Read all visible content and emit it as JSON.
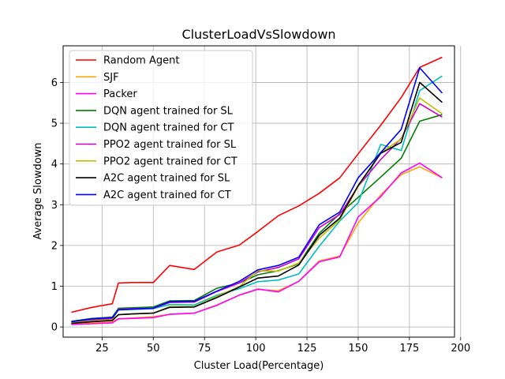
{
  "chart_data": {
    "type": "line",
    "title": "ClusterLoadVsSlowdown",
    "xlabel": "Cluster Load(Percentage)",
    "ylabel": "Average Slowdown",
    "xlim": [
      6,
      197
    ],
    "ylim": [
      -0.25,
      6.9
    ],
    "xticks": [
      25,
      50,
      75,
      100,
      125,
      150,
      175,
      200
    ],
    "yticks": [
      0,
      1,
      2,
      3,
      4,
      5,
      6
    ],
    "grid": true,
    "legend_position": "upper-left",
    "x": [
      10,
      20,
      30,
      33,
      40,
      50,
      58,
      70,
      81,
      92,
      101,
      111,
      121,
      131,
      141,
      150,
      161,
      171,
      180,
      191
    ],
    "series": [
      {
        "name": "Random Agent",
        "color": "#ff0000",
        "values": [
          0.36,
          0.48,
          0.57,
          1.08,
          1.09,
          1.09,
          1.51,
          1.41,
          1.84,
          2.01,
          2.34,
          2.73,
          2.97,
          3.28,
          3.66,
          4.25,
          4.95,
          5.63,
          6.37,
          6.62
        ]
      },
      {
        "name": "SJF",
        "color": "#ffa500",
        "values": [
          0.07,
          0.1,
          0.13,
          0.2,
          0.22,
          0.25,
          0.31,
          0.34,
          0.54,
          0.78,
          0.92,
          0.89,
          1.12,
          1.62,
          1.74,
          2.55,
          3.24,
          3.74,
          3.93,
          3.66
        ]
      },
      {
        "name": "Packer",
        "color": "#ff00ff",
        "values": [
          0.06,
          0.08,
          0.1,
          0.2,
          0.21,
          0.23,
          0.31,
          0.34,
          0.53,
          0.78,
          0.93,
          0.86,
          1.12,
          1.6,
          1.72,
          2.7,
          3.2,
          3.78,
          4.02,
          3.66
        ]
      },
      {
        "name": "DQN agent trained for SL",
        "color": "#008000",
        "values": [
          0.14,
          0.21,
          0.24,
          0.46,
          0.47,
          0.49,
          0.64,
          0.65,
          0.95,
          1.08,
          1.28,
          1.38,
          1.55,
          2.3,
          2.78,
          3.18,
          3.68,
          4.14,
          5.05,
          5.21
        ]
      },
      {
        "name": "DQN agent trained for CT",
        "color": "#00bfbf",
        "values": [
          0.11,
          0.16,
          0.19,
          0.42,
          0.43,
          0.45,
          0.55,
          0.54,
          0.78,
          0.94,
          1.11,
          1.15,
          1.3,
          1.98,
          2.6,
          3.05,
          4.48,
          4.33,
          5.8,
          6.16
        ]
      },
      {
        "name": "PPO2 agent trained for SL",
        "color": "#cc00cc",
        "values": [
          0.12,
          0.18,
          0.21,
          0.43,
          0.45,
          0.46,
          0.6,
          0.61,
          0.87,
          1.08,
          1.35,
          1.46,
          1.67,
          2.44,
          2.76,
          3.45,
          4.11,
          4.63,
          5.48,
          5.15
        ]
      },
      {
        "name": "PPO2 agent trained for CT",
        "color": "#bfbf00",
        "values": [
          0.1,
          0.15,
          0.18,
          0.3,
          0.32,
          0.34,
          0.5,
          0.5,
          0.75,
          0.99,
          1.38,
          1.37,
          1.57,
          2.18,
          2.63,
          3.45,
          4.28,
          4.61,
          5.62,
          5.23
        ]
      },
      {
        "name": "A2C agent trained for SL",
        "color": "#000000",
        "values": [
          0.09,
          0.13,
          0.16,
          0.3,
          0.32,
          0.34,
          0.48,
          0.49,
          0.72,
          0.98,
          1.2,
          1.25,
          1.52,
          2.25,
          2.67,
          3.47,
          4.26,
          4.53,
          6.0,
          5.51
        ]
      },
      {
        "name": "A2C agent trained for CT",
        "color": "#0000ff",
        "values": [
          0.13,
          0.2,
          0.23,
          0.42,
          0.44,
          0.46,
          0.62,
          0.63,
          0.88,
          1.12,
          1.4,
          1.51,
          1.71,
          2.51,
          2.82,
          3.66,
          4.28,
          4.85,
          6.36,
          5.74
        ]
      }
    ]
  }
}
